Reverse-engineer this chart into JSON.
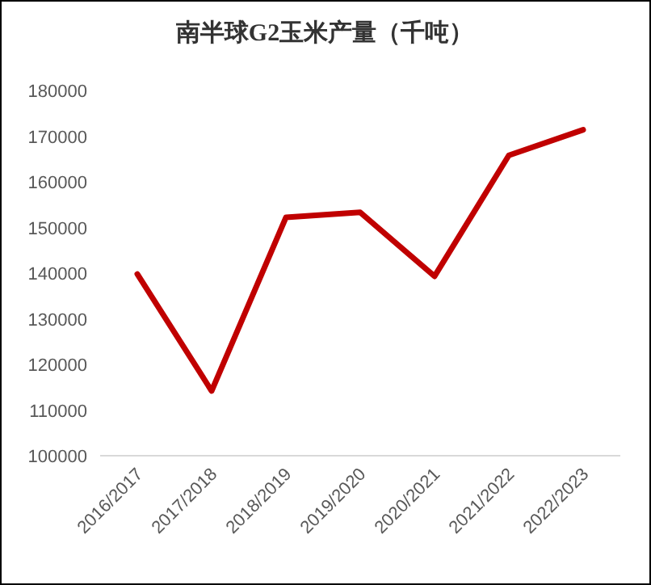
{
  "chart_data": {
    "type": "line",
    "title": "南半球G2玉米产量（千吨）",
    "categories": [
      "2016/2017",
      "2017/2018",
      "2018/2019",
      "2019/2020",
      "2020/2021",
      "2021/2022",
      "2022/2023"
    ],
    "series": [
      {
        "color": "#c00000",
        "values": [
          139800,
          114200,
          152200,
          153300,
          139300,
          165800,
          171400
        ]
      }
    ],
    "ylim": [
      100000,
      180000
    ],
    "yticks": [
      100000,
      110000,
      120000,
      130000,
      140000,
      150000,
      160000,
      170000,
      180000
    ],
    "grid": false,
    "marker": "none",
    "line_style": "solid"
  }
}
